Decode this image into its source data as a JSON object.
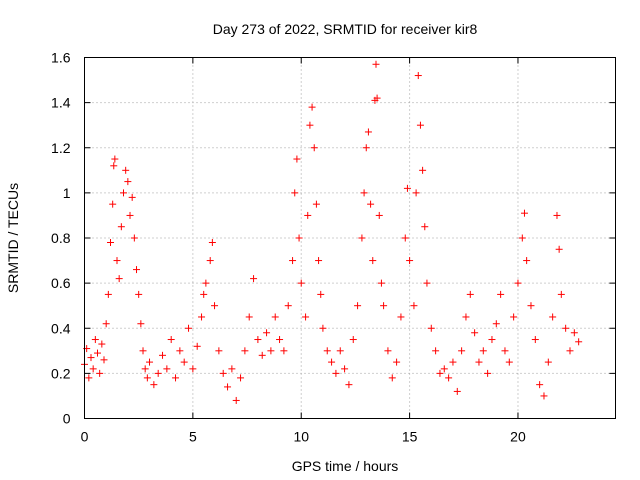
{
  "chart_data": {
    "type": "scatter",
    "title": "Day 273 of 2022, SRMTID for receiver kir8",
    "xlabel": "GPS time / hours",
    "ylabel": "SRMTID / TECUs",
    "xlim": [
      0,
      24.5
    ],
    "ylim": [
      0,
      1.6
    ],
    "xticks": [
      0,
      5,
      10,
      15,
      20
    ],
    "xtick_labels": [
      "0",
      "5",
      "10",
      "15",
      "20"
    ],
    "yticks": [
      0,
      0.2,
      0.4,
      0.6,
      0.8,
      1,
      1.2,
      1.4,
      1.6
    ],
    "ytick_labels": [
      "0",
      "0.2",
      "0.4",
      "0.6",
      "0.8",
      "1",
      "1.2",
      "1.4",
      "1.6"
    ],
    "grid": true,
    "marker": "plus",
    "series": [
      {
        "name": "kir8",
        "color": "#ff0000",
        "points": [
          [
            0.0,
            0.24
          ],
          [
            0.1,
            0.31
          ],
          [
            0.2,
            0.18
          ],
          [
            0.3,
            0.27
          ],
          [
            0.4,
            0.22
          ],
          [
            0.5,
            0.35
          ],
          [
            0.6,
            0.29
          ],
          [
            0.7,
            0.2
          ],
          [
            0.8,
            0.33
          ],
          [
            0.9,
            0.26
          ],
          [
            1.0,
            0.42
          ],
          [
            1.1,
            0.55
          ],
          [
            1.2,
            0.78
          ],
          [
            1.3,
            0.95
          ],
          [
            1.35,
            1.12
          ],
          [
            1.4,
            1.15
          ],
          [
            1.5,
            0.7
          ],
          [
            1.6,
            0.62
          ],
          [
            1.7,
            0.85
          ],
          [
            1.8,
            1.0
          ],
          [
            1.9,
            1.1
          ],
          [
            2.0,
            1.05
          ],
          [
            2.1,
            0.9
          ],
          [
            2.2,
            0.98
          ],
          [
            2.3,
            0.8
          ],
          [
            2.4,
            0.66
          ],
          [
            2.5,
            0.55
          ],
          [
            2.6,
            0.42
          ],
          [
            2.7,
            0.3
          ],
          [
            2.8,
            0.22
          ],
          [
            2.9,
            0.18
          ],
          [
            3.0,
            0.25
          ],
          [
            3.2,
            0.15
          ],
          [
            3.4,
            0.2
          ],
          [
            3.6,
            0.28
          ],
          [
            3.8,
            0.22
          ],
          [
            4.0,
            0.35
          ],
          [
            4.2,
            0.18
          ],
          [
            4.4,
            0.3
          ],
          [
            4.6,
            0.25
          ],
          [
            4.8,
            0.4
          ],
          [
            5.0,
            0.22
          ],
          [
            5.2,
            0.32
          ],
          [
            5.4,
            0.45
          ],
          [
            5.5,
            0.55
          ],
          [
            5.6,
            0.6
          ],
          [
            5.8,
            0.7
          ],
          [
            5.9,
            0.78
          ],
          [
            6.0,
            0.5
          ],
          [
            6.2,
            0.3
          ],
          [
            6.4,
            0.2
          ],
          [
            6.6,
            0.14
          ],
          [
            6.8,
            0.22
          ],
          [
            7.0,
            0.08
          ],
          [
            7.2,
            0.18
          ],
          [
            7.4,
            0.3
          ],
          [
            7.6,
            0.45
          ],
          [
            7.8,
            0.62
          ],
          [
            8.0,
            0.35
          ],
          [
            8.2,
            0.28
          ],
          [
            8.4,
            0.38
          ],
          [
            8.6,
            0.3
          ],
          [
            8.8,
            0.45
          ],
          [
            9.0,
            0.35
          ],
          [
            9.2,
            0.3
          ],
          [
            9.4,
            0.5
          ],
          [
            9.6,
            0.7
          ],
          [
            9.7,
            1.0
          ],
          [
            9.8,
            1.15
          ],
          [
            9.9,
            0.8
          ],
          [
            10.0,
            0.6
          ],
          [
            10.2,
            0.45
          ],
          [
            10.3,
            0.9
          ],
          [
            10.4,
            1.3
          ],
          [
            10.5,
            1.38
          ],
          [
            10.6,
            1.2
          ],
          [
            10.7,
            0.95
          ],
          [
            10.8,
            0.7
          ],
          [
            10.9,
            0.55
          ],
          [
            11.0,
            0.4
          ],
          [
            11.2,
            0.3
          ],
          [
            11.4,
            0.25
          ],
          [
            11.6,
            0.2
          ],
          [
            11.8,
            0.3
          ],
          [
            12.0,
            0.22
          ],
          [
            12.2,
            0.15
          ],
          [
            12.4,
            0.35
          ],
          [
            12.6,
            0.5
          ],
          [
            12.8,
            0.8
          ],
          [
            12.9,
            1.0
          ],
          [
            13.0,
            1.2
          ],
          [
            13.1,
            1.27
          ],
          [
            13.2,
            0.95
          ],
          [
            13.3,
            0.7
          ],
          [
            13.4,
            1.41
          ],
          [
            13.45,
            1.57
          ],
          [
            13.5,
            1.42
          ],
          [
            13.6,
            0.9
          ],
          [
            13.7,
            0.6
          ],
          [
            13.8,
            0.5
          ],
          [
            14.0,
            0.3
          ],
          [
            14.2,
            0.18
          ],
          [
            14.4,
            0.25
          ],
          [
            14.6,
            0.45
          ],
          [
            14.8,
            0.8
          ],
          [
            14.9,
            1.02
          ],
          [
            15.0,
            0.7
          ],
          [
            15.2,
            0.5
          ],
          [
            15.3,
            1.0
          ],
          [
            15.4,
            1.52
          ],
          [
            15.5,
            1.3
          ],
          [
            15.6,
            1.1
          ],
          [
            15.7,
            0.85
          ],
          [
            15.8,
            0.6
          ],
          [
            16.0,
            0.4
          ],
          [
            16.2,
            0.3
          ],
          [
            16.4,
            0.2
          ],
          [
            16.6,
            0.22
          ],
          [
            16.8,
            0.18
          ],
          [
            17.0,
            0.25
          ],
          [
            17.2,
            0.12
          ],
          [
            17.4,
            0.3
          ],
          [
            17.6,
            0.45
          ],
          [
            17.8,
            0.55
          ],
          [
            18.0,
            0.38
          ],
          [
            18.2,
            0.25
          ],
          [
            18.4,
            0.3
          ],
          [
            18.6,
            0.2
          ],
          [
            18.8,
            0.35
          ],
          [
            19.0,
            0.42
          ],
          [
            19.2,
            0.55
          ],
          [
            19.4,
            0.3
          ],
          [
            19.6,
            0.25
          ],
          [
            19.8,
            0.45
          ],
          [
            20.0,
            0.6
          ],
          [
            20.2,
            0.8
          ],
          [
            20.3,
            0.91
          ],
          [
            20.4,
            0.7
          ],
          [
            20.6,
            0.5
          ],
          [
            20.8,
            0.35
          ],
          [
            21.0,
            0.15
          ],
          [
            21.2,
            0.1
          ],
          [
            21.4,
            0.25
          ],
          [
            21.6,
            0.45
          ],
          [
            21.8,
            0.9
          ],
          [
            21.9,
            0.75
          ],
          [
            22.0,
            0.55
          ],
          [
            22.2,
            0.4
          ],
          [
            22.4,
            0.3
          ],
          [
            22.6,
            0.38
          ],
          [
            22.8,
            0.34
          ]
        ]
      }
    ]
  }
}
